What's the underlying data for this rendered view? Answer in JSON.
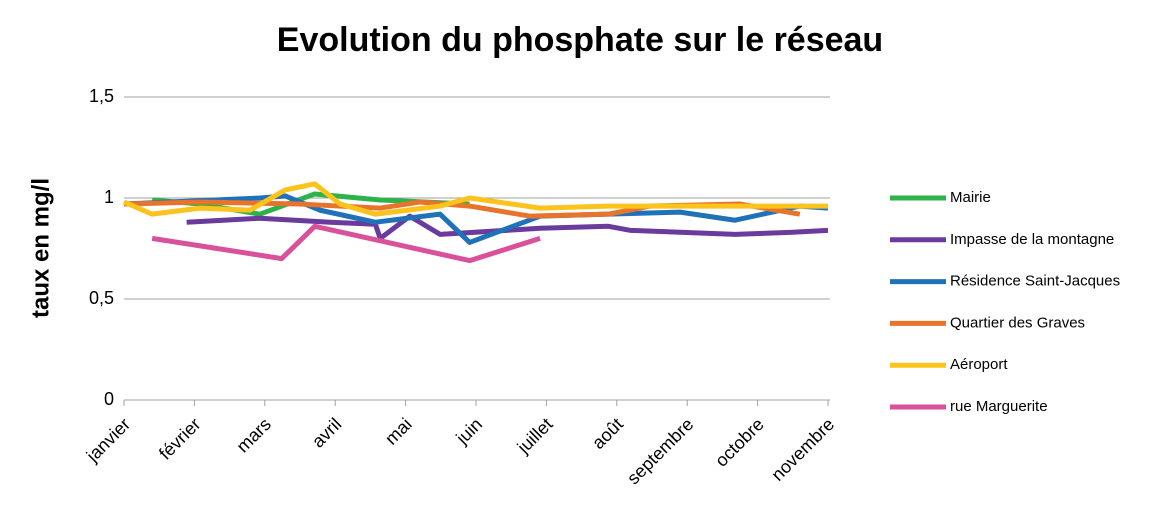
{
  "chart_data": {
    "type": "line",
    "title": "Evolution du phosphate sur le réseau",
    "y_label": "taux en mg/l",
    "xlim": [
      0,
      10
    ],
    "xticks": [
      {
        "value": 0,
        "label": "janvier"
      },
      {
        "value": 1,
        "label": "février"
      },
      {
        "value": 2,
        "label": "mars"
      },
      {
        "value": 3,
        "label": "avril"
      },
      {
        "value": 4,
        "label": "mai"
      },
      {
        "value": 5,
        "label": "juin"
      },
      {
        "value": 6,
        "label": "juillet"
      },
      {
        "value": 7,
        "label": "août"
      },
      {
        "value": 8,
        "label": "septembre"
      },
      {
        "value": 9,
        "label": "octobre"
      },
      {
        "value": 10,
        "label": "novembre"
      }
    ],
    "ylim": [
      0,
      1.5
    ],
    "yticks": [
      0,
      {
        "value": 0.5,
        "label": "0,5"
      },
      1,
      {
        "value": 1.5,
        "label": "1,5"
      }
    ],
    "grid": true,
    "legend": "right",
    "series": [
      {
        "name": "Mairie",
        "color": "#2db34a",
        "x": [
          0.4,
          1.08,
          1.93,
          2.71,
          3.64,
          4.91
        ],
        "values": [
          0.99,
          0.97,
          0.92,
          1.02,
          0.99,
          0.97
        ]
      },
      {
        "name": "Impasse de la montagne",
        "color": "#6a3a9c",
        "x": [
          0.89,
          1.93,
          2.93,
          3.57,
          3.64,
          4.06,
          4.49,
          5.91,
          6.88,
          7.19,
          8.68,
          9.46,
          10.0
        ],
        "values": [
          0.88,
          0.9,
          0.88,
          0.87,
          0.8,
          0.91,
          0.82,
          0.85,
          0.86,
          0.84,
          0.82,
          0.83,
          0.84
        ]
      },
      {
        "name": "Résidence Saint-Jacques",
        "color": "#1f72b8",
        "x": [
          0,
          1.93,
          2.29,
          2.78,
          3.57,
          4.49,
          4.91,
          5.91,
          6.88,
          7.9,
          8.68,
          9.6,
          10.0
        ],
        "values": [
          0.97,
          1.0,
          1.01,
          0.94,
          0.88,
          0.92,
          0.78,
          0.91,
          0.92,
          0.93,
          0.89,
          0.96,
          0.95
        ]
      },
      {
        "name": "Quartier des Graves",
        "color": "#e8732a",
        "x": [
          0,
          1.08,
          2.5,
          3.64,
          4.2,
          4.91,
          5.77,
          6.88,
          7.47,
          8.75,
          9.6
        ],
        "values": [
          0.97,
          0.98,
          0.97,
          0.95,
          0.98,
          0.96,
          0.91,
          0.92,
          0.96,
          0.97,
          0.92
        ]
      },
      {
        "name": "Aéroport",
        "color": "#fbc31c",
        "x": [
          0,
          0.4,
          1.08,
          1.79,
          2.29,
          2.71,
          3.07,
          3.57,
          4.49,
          4.91,
          5.91,
          6.88,
          10.0
        ],
        "values": [
          0.98,
          0.92,
          0.95,
          0.94,
          1.04,
          1.07,
          0.97,
          0.92,
          0.96,
          1.0,
          0.95,
          0.96,
          0.96
        ]
      },
      {
        "name": "rue Marguerite",
        "color": "#d9519a",
        "x": [
          0.4,
          2.24,
          2.71,
          4.91,
          5.91
        ],
        "values": [
          0.8,
          0.7,
          0.86,
          0.69,
          0.8
        ]
      }
    ]
  }
}
